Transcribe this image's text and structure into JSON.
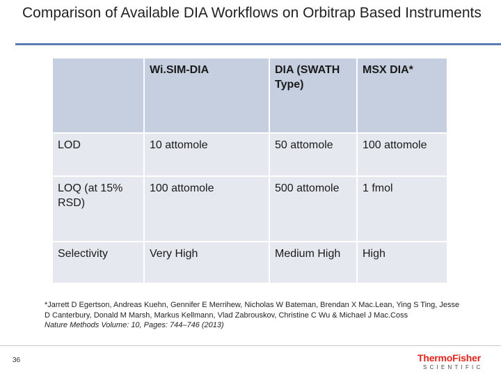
{
  "slide": {
    "title": "Comparison of Available DIA Workflows on Orbitrap Based Instruments",
    "page_number": "36"
  },
  "table": {
    "headers": [
      "",
      "Wi.SIM-DIA",
      "DIA (SWATH Type)",
      "MSX DIA*"
    ],
    "rows": [
      [
        "LOD",
        "10 attomole",
        "50 attomole",
        "100 attomole"
      ],
      [
        "LOQ (at 15% RSD)",
        "100 attomole",
        "500 attomole",
        "1 fmol"
      ],
      [
        "Selectivity",
        "Very High",
        "Medium High",
        "High"
      ]
    ]
  },
  "footnote": {
    "authors": "*Jarrett D Egertson, Andreas Kuehn, Gennifer E Merrihew, Nicholas W Bateman, Brendan X Mac.Lean, Ying S Ting, Jesse D Canterbury, Donald M Marsh, Markus Kellmann, Vlad Zabrouskov, Christine C Wu & Michael J Mac.Coss",
    "journal": "Nature Methods Volume: 10,",
    "pages": " Pages: 744–746 (2013)"
  },
  "logo": {
    "top_text": "ThermoFisher",
    "bottom_text": "SCIENTIFIC",
    "brand_color": "#e2231a"
  },
  "colors": {
    "header_cell": "#c6cfdf",
    "body_cell": "#e5e8ef",
    "title_rule": "#5a7bb5"
  }
}
